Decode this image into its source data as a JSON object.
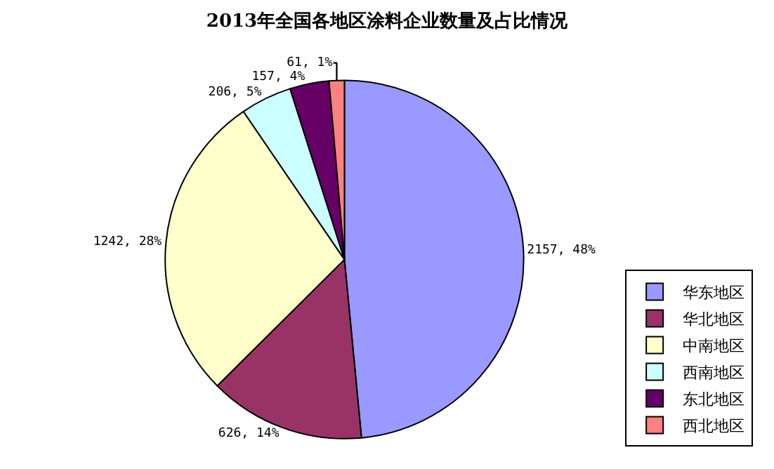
{
  "chart_data": {
    "type": "pie",
    "title": "2013年全国各地区涂料企业数量及占比情况",
    "categories": [
      "华东地区",
      "华北地区",
      "中南地区",
      "西南地区",
      "东北地区",
      "西北地区"
    ],
    "values": [
      2157,
      626,
      1242,
      206,
      157,
      61
    ],
    "value_labels": [
      "2157, 48%",
      "626, 14%",
      "1242, 28%",
      "206, 5%",
      "157, 4%",
      "61, 1%"
    ],
    "colors": [
      "#9999ff",
      "#993366",
      "#ffffcc",
      "#ccffff",
      "#660066",
      "#ff8080"
    ],
    "legend": "bottom right"
  }
}
